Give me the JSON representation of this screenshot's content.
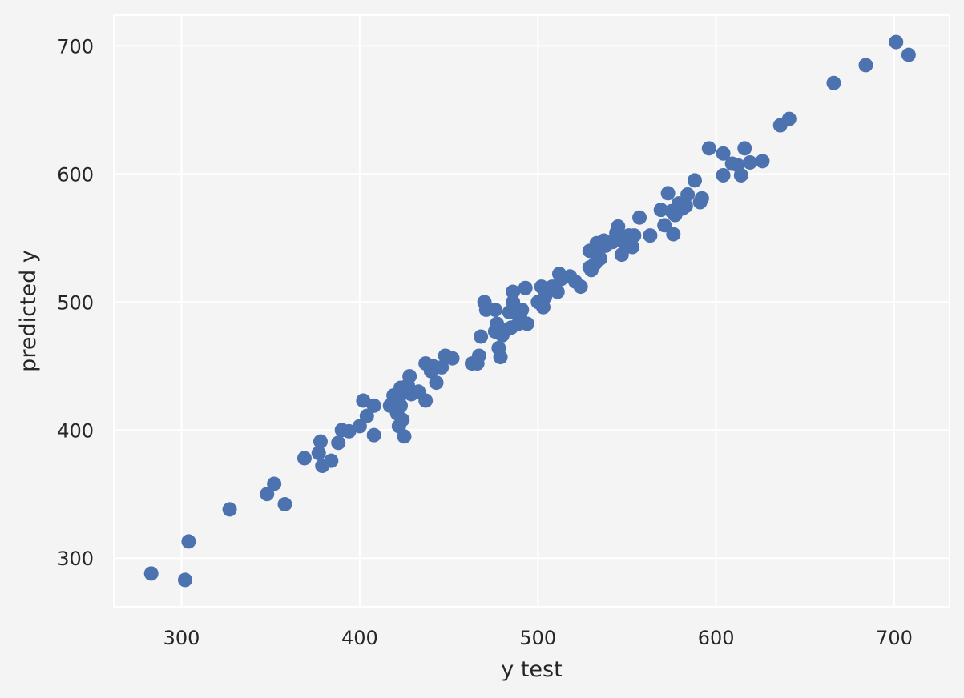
{
  "chart_data": {
    "type": "scatter",
    "title": "",
    "xlabel": "y test",
    "ylabel": "predicted y",
    "xlim": [
      262,
      731
    ],
    "ylim": [
      262,
      724
    ],
    "xticks": [
      300,
      400,
      500,
      600,
      700
    ],
    "yticks": [
      300,
      400,
      500,
      600,
      700
    ],
    "grid": true,
    "colors": {
      "background": "#f4f4f4",
      "grid": "#ffffff",
      "marker": "#4c72b0",
      "text": "#262626"
    },
    "series": [
      {
        "points": [
          [
            283,
            288
          ],
          [
            302,
            283
          ],
          [
            304,
            313
          ],
          [
            327,
            338
          ],
          [
            348,
            350
          ],
          [
            352,
            358
          ],
          [
            358,
            342
          ],
          [
            369,
            378
          ],
          [
            377,
            382
          ],
          [
            378,
            391
          ],
          [
            379,
            372
          ],
          [
            384,
            376
          ],
          [
            388,
            390
          ],
          [
            390,
            400
          ],
          [
            394,
            399
          ],
          [
            400,
            403
          ],
          [
            402,
            423
          ],
          [
            404,
            411
          ],
          [
            408,
            419
          ],
          [
            408,
            396
          ],
          [
            417,
            419
          ],
          [
            419,
            427
          ],
          [
            421,
            413
          ],
          [
            422,
            403
          ],
          [
            422,
            425
          ],
          [
            423,
            419
          ],
          [
            423,
            433
          ],
          [
            424,
            408
          ],
          [
            425,
            395
          ],
          [
            426,
            430
          ],
          [
            427,
            435
          ],
          [
            428,
            442
          ],
          [
            429,
            428
          ],
          [
            433,
            430
          ],
          [
            437,
            423
          ],
          [
            437,
            452
          ],
          [
            440,
            446
          ],
          [
            441,
            450
          ],
          [
            443,
            437
          ],
          [
            446,
            449
          ],
          [
            448,
            458
          ],
          [
            452,
            456
          ],
          [
            463,
            452
          ],
          [
            466,
            452
          ],
          [
            467,
            458
          ],
          [
            468,
            473
          ],
          [
            470,
            500
          ],
          [
            471,
            494
          ],
          [
            476,
            494
          ],
          [
            476,
            477
          ],
          [
            477,
            483
          ],
          [
            478,
            464
          ],
          [
            478,
            480
          ],
          [
            479,
            457
          ],
          [
            480,
            474
          ],
          [
            482,
            478
          ],
          [
            484,
            492
          ],
          [
            485,
            480
          ],
          [
            486,
            508
          ],
          [
            486,
            500
          ],
          [
            489,
            483
          ],
          [
            490,
            488
          ],
          [
            491,
            494
          ],
          [
            493,
            511
          ],
          [
            494,
            483
          ],
          [
            500,
            500
          ],
          [
            502,
            512
          ],
          [
            503,
            496
          ],
          [
            504,
            504
          ],
          [
            508,
            512
          ],
          [
            511,
            508
          ],
          [
            512,
            522
          ],
          [
            513,
            518
          ],
          [
            518,
            520
          ],
          [
            521,
            516
          ],
          [
            524,
            512
          ],
          [
            529,
            527
          ],
          [
            529,
            540
          ],
          [
            530,
            525
          ],
          [
            532,
            530
          ],
          [
            533,
            546
          ],
          [
            534,
            541
          ],
          [
            535,
            534
          ],
          [
            537,
            548
          ],
          [
            538,
            544
          ],
          [
            542,
            547
          ],
          [
            544,
            554
          ],
          [
            545,
            559
          ],
          [
            546,
            549
          ],
          [
            547,
            537
          ],
          [
            549,
            546
          ],
          [
            551,
            552
          ],
          [
            553,
            543
          ],
          [
            554,
            552
          ],
          [
            557,
            566
          ],
          [
            563,
            552
          ],
          [
            569,
            572
          ],
          [
            571,
            560
          ],
          [
            573,
            585
          ],
          [
            575,
            571
          ],
          [
            576,
            553
          ],
          [
            577,
            568
          ],
          [
            579,
            577
          ],
          [
            581,
            573
          ],
          [
            583,
            575
          ],
          [
            584,
            584
          ],
          [
            588,
            595
          ],
          [
            591,
            578
          ],
          [
            592,
            581
          ],
          [
            596,
            620
          ],
          [
            604,
            616
          ],
          [
            604,
            599
          ],
          [
            609,
            608
          ],
          [
            612,
            607
          ],
          [
            614,
            599
          ],
          [
            616,
            620
          ],
          [
            619,
            609
          ],
          [
            626,
            610
          ],
          [
            636,
            638
          ],
          [
            641,
            643
          ],
          [
            666,
            671
          ],
          [
            684,
            685
          ],
          [
            701,
            703
          ],
          [
            708,
            693
          ]
        ]
      }
    ]
  }
}
